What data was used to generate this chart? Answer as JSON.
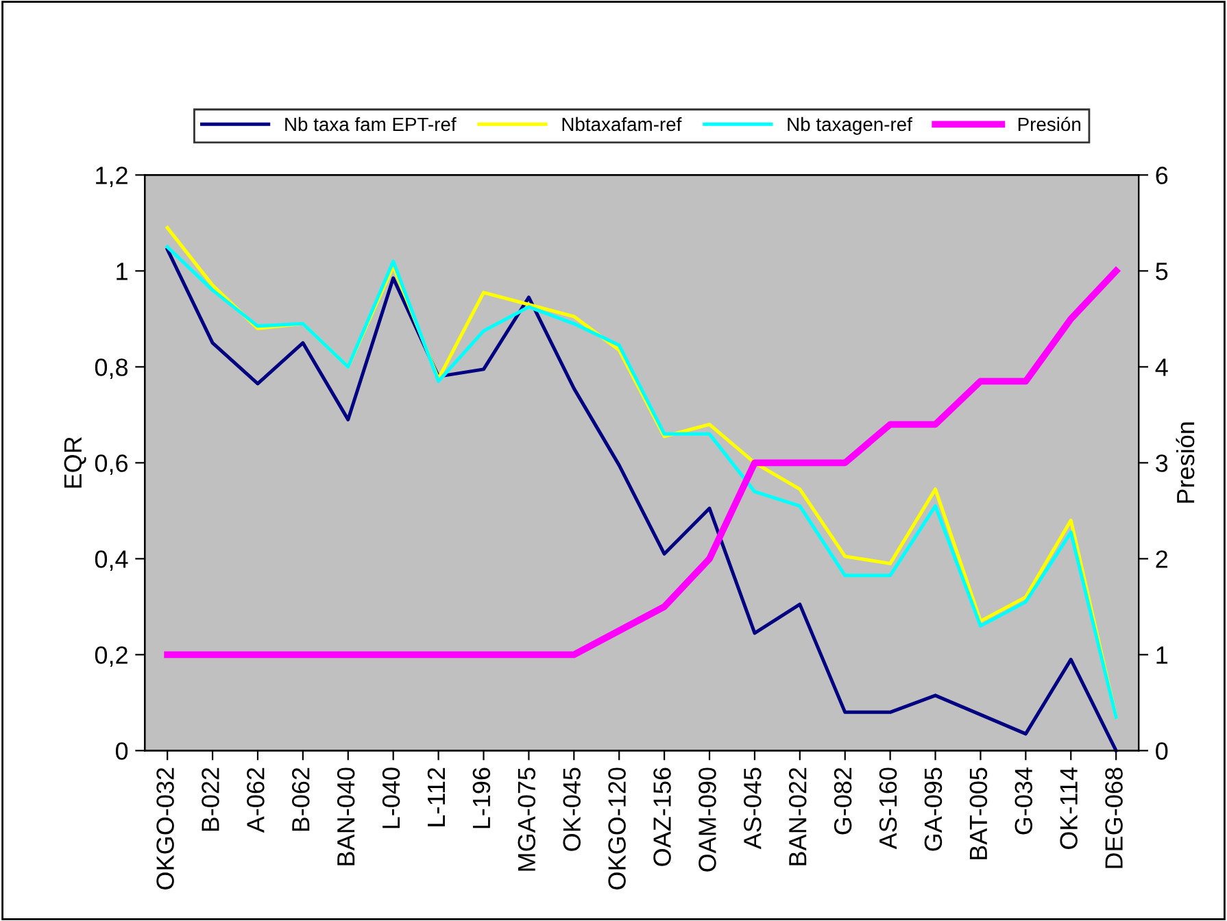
{
  "chart_data": {
    "type": "line",
    "ylabel": "EQR",
    "y2label": "Presión",
    "categories": [
      "OKGO-032",
      "B-022",
      "A-062",
      "B-062",
      "BAN-040",
      "L-040",
      "L-112",
      "L-196",
      "MGA-075",
      "OK-045",
      "OKGO-120",
      "OAZ-156",
      "OAM-090",
      "AS-045",
      "BAN-022",
      "G-082",
      "AS-160",
      "GA-095",
      "BAT-005",
      "G-034",
      "OK-114",
      "DEG-068"
    ],
    "series": [
      {
        "name": "Nb taxa fam EPT-ref",
        "color": "#000080",
        "values": [
          1.045,
          0.85,
          0.765,
          0.85,
          0.69,
          0.985,
          0.78,
          0.795,
          0.945,
          0.755,
          0.595,
          0.41,
          0.505,
          0.245,
          0.305,
          0.08,
          0.08,
          0.115,
          0.075,
          0.035,
          0.19,
          0.0
        ]
      },
      {
        "name": "Nbtaxafam-ref",
        "color": "#ffff00",
        "values": [
          1.09,
          0.97,
          0.88,
          0.89,
          0.8,
          1.01,
          0.775,
          0.955,
          0.93,
          0.905,
          0.835,
          0.655,
          0.68,
          0.6,
          0.545,
          0.405,
          0.39,
          0.545,
          0.27,
          0.32,
          0.48,
          0.07
        ]
      },
      {
        "name": "Nb taxagen-ref",
        "color": "#00ffff",
        "values": [
          1.05,
          0.96,
          0.885,
          0.89,
          0.8,
          1.02,
          0.77,
          0.875,
          0.925,
          0.89,
          0.845,
          0.66,
          0.66,
          0.54,
          0.51,
          0.365,
          0.365,
          0.51,
          0.26,
          0.31,
          0.455,
          0.07
        ]
      },
      {
        "name": "Presión",
        "color": "#ff00ff",
        "axis": "y2",
        "values": [
          1,
          1,
          1,
          1,
          1,
          1,
          1,
          1,
          1,
          1,
          1.25,
          1.5,
          2,
          3,
          3,
          3,
          3.4,
          3.4,
          3.85,
          3.85,
          4.5,
          5
        ]
      }
    ],
    "ylim": [
      0,
      1.2
    ],
    "yticks": [
      {
        "value": 0,
        "label": "0"
      },
      {
        "value": 0.2,
        "label": "0,2"
      },
      {
        "value": 0.4,
        "label": "0,4"
      },
      {
        "value": 0.6,
        "label": "0,6"
      },
      {
        "value": 0.8,
        "label": "0,8"
      },
      {
        "value": 1,
        "label": "1"
      },
      {
        "value": 1.2,
        "label": "1,2"
      }
    ],
    "y2lim": [
      0,
      6
    ],
    "y2ticks": [
      0,
      1,
      2,
      3,
      4,
      5,
      6
    ],
    "grid": false,
    "legend": "top",
    "marker": "none",
    "line_style": "solid"
  }
}
